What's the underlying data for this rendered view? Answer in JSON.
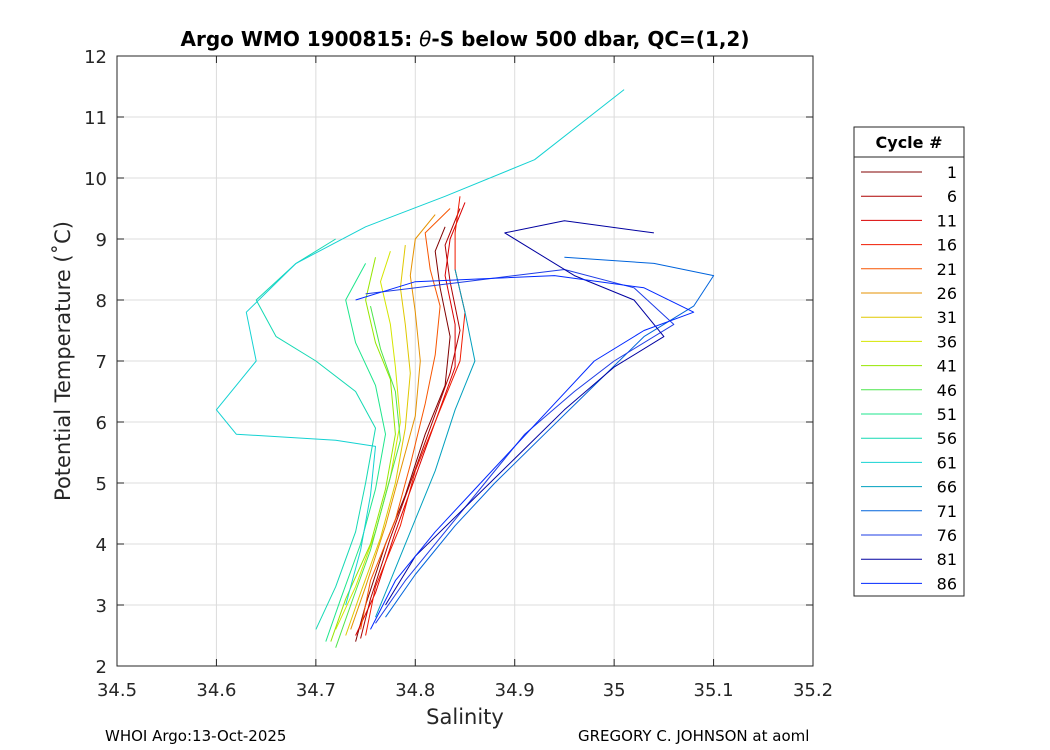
{
  "chart_data": {
    "type": "line",
    "title_prefix": "Argo WMO 1900815: ",
    "title_symbol": "θ",
    "title_suffix": "-S below 500 dbar,  QC=(1,2)",
    "xlabel": "Salinity",
    "ylabel": "Potential Temperature (˚C)",
    "xlim": [
      34.5,
      35.2
    ],
    "ylim": [
      2,
      12
    ],
    "xticks": [
      34.5,
      34.6,
      34.7,
      34.8,
      34.9,
      35,
      35.1,
      35.2
    ],
    "xtick_labels": [
      "34.5",
      "34.6",
      "34.7",
      "34.8",
      "34.9",
      "35",
      "35.1",
      "35.2"
    ],
    "yticks": [
      2,
      3,
      4,
      5,
      6,
      7,
      8,
      9,
      10,
      11,
      12
    ],
    "ytick_labels": [
      "2",
      "3",
      "4",
      "5",
      "6",
      "7",
      "8",
      "9",
      "10",
      "11",
      "12"
    ],
    "grid": true,
    "legend_title": "Cycle #",
    "legend_position": "outside-right",
    "series": [
      {
        "name": "1",
        "color": "#800000",
        "points": [
          [
            34.74,
            2.4
          ],
          [
            34.75,
            3.0
          ],
          [
            34.77,
            4.0
          ],
          [
            34.79,
            4.8
          ],
          [
            34.81,
            5.8
          ],
          [
            34.83,
            6.6
          ],
          [
            34.835,
            7.4
          ],
          [
            34.825,
            8.2
          ],
          [
            34.82,
            8.8
          ],
          [
            34.83,
            9.2
          ]
        ]
      },
      {
        "name": "6",
        "color": "#ad0000",
        "points": [
          [
            34.745,
            2.45
          ],
          [
            34.755,
            3.1
          ],
          [
            34.775,
            4.1
          ],
          [
            34.795,
            5.0
          ],
          [
            34.815,
            5.9
          ],
          [
            34.835,
            6.8
          ],
          [
            34.845,
            7.5
          ],
          [
            34.835,
            8.3
          ],
          [
            34.83,
            8.9
          ],
          [
            34.845,
            9.5
          ]
        ]
      },
      {
        "name": "11",
        "color": "#d90000",
        "points": [
          [
            34.74,
            2.5
          ],
          [
            34.76,
            3.2
          ],
          [
            34.78,
            4.2
          ],
          [
            34.8,
            5.1
          ],
          [
            34.82,
            6.0
          ],
          [
            34.84,
            6.9
          ],
          [
            34.84,
            7.6
          ],
          [
            34.83,
            8.4
          ],
          [
            34.835,
            9.0
          ],
          [
            34.85,
            9.6
          ]
        ]
      },
      {
        "name": "16",
        "color": "#f01a00",
        "points": [
          [
            34.75,
            2.5
          ],
          [
            34.76,
            3.3
          ],
          [
            34.785,
            4.3
          ],
          [
            34.8,
            5.2
          ],
          [
            34.825,
            6.2
          ],
          [
            34.845,
            7.0
          ],
          [
            34.85,
            7.8
          ],
          [
            34.84,
            8.5
          ],
          [
            34.84,
            9.1
          ],
          [
            34.845,
            9.7
          ]
        ]
      },
      {
        "name": "21",
        "color": "#f75500",
        "points": [
          [
            34.745,
            2.6
          ],
          [
            34.755,
            3.4
          ],
          [
            34.78,
            4.4
          ],
          [
            34.795,
            5.3
          ],
          [
            34.81,
            6.3
          ],
          [
            34.82,
            7.1
          ],
          [
            34.825,
            7.9
          ],
          [
            34.815,
            8.5
          ],
          [
            34.81,
            9.1
          ],
          [
            34.835,
            9.5
          ]
        ]
      },
      {
        "name": "26",
        "color": "#e69200",
        "points": [
          [
            34.735,
            2.6
          ],
          [
            34.75,
            3.3
          ],
          [
            34.77,
            4.3
          ],
          [
            34.785,
            5.2
          ],
          [
            34.8,
            6.1
          ],
          [
            34.805,
            7.0
          ],
          [
            34.8,
            7.8
          ],
          [
            34.795,
            8.4
          ],
          [
            34.8,
            9.0
          ],
          [
            34.82,
            9.4
          ]
        ]
      },
      {
        "name": "31",
        "color": "#e0c800",
        "points": [
          [
            34.73,
            2.5
          ],
          [
            34.745,
            3.2
          ],
          [
            34.765,
            4.1
          ],
          [
            34.78,
            5.0
          ],
          [
            34.79,
            5.9
          ],
          [
            34.795,
            6.8
          ],
          [
            34.79,
            7.6
          ],
          [
            34.785,
            8.2
          ],
          [
            34.79,
            8.9
          ]
        ]
      },
      {
        "name": "36",
        "color": "#d4e600",
        "points": [
          [
            34.72,
            2.6
          ],
          [
            34.74,
            3.3
          ],
          [
            34.76,
            4.2
          ],
          [
            34.775,
            5.1
          ],
          [
            34.785,
            6.0
          ],
          [
            34.78,
            6.9
          ],
          [
            34.775,
            7.6
          ],
          [
            34.765,
            8.3
          ],
          [
            34.775,
            8.8
          ]
        ]
      },
      {
        "name": "41",
        "color": "#96e600",
        "points": [
          [
            34.715,
            2.4
          ],
          [
            34.73,
            3.1
          ],
          [
            34.755,
            4.0
          ],
          [
            34.77,
            4.9
          ],
          [
            34.78,
            5.8
          ],
          [
            34.775,
            6.7
          ],
          [
            34.76,
            7.3
          ],
          [
            34.75,
            8.0
          ],
          [
            34.76,
            8.7
          ]
        ]
      },
      {
        "name": "46",
        "color": "#4ce64c",
        "points": [
          [
            34.72,
            2.3
          ],
          [
            34.735,
            3.0
          ],
          [
            34.755,
            3.9
          ],
          [
            34.77,
            4.8
          ],
          [
            34.785,
            5.7
          ],
          [
            34.78,
            6.5
          ],
          [
            34.765,
            7.2
          ],
          [
            34.755,
            7.9
          ]
        ]
      },
      {
        "name": "51",
        "color": "#1ee68c",
        "points": [
          [
            34.71,
            2.4
          ],
          [
            34.725,
            3.1
          ],
          [
            34.745,
            4.0
          ],
          [
            34.76,
            4.9
          ],
          [
            34.77,
            5.8
          ],
          [
            34.76,
            6.6
          ],
          [
            34.74,
            7.3
          ],
          [
            34.73,
            8.0
          ],
          [
            34.75,
            8.6
          ]
        ]
      },
      {
        "name": "56",
        "color": "#14d9b4",
        "points": [
          [
            34.7,
            2.6
          ],
          [
            34.72,
            3.3
          ],
          [
            34.74,
            4.2
          ],
          [
            34.75,
            5.0
          ],
          [
            34.76,
            5.9
          ],
          [
            34.74,
            6.5
          ],
          [
            34.7,
            7.0
          ],
          [
            34.66,
            7.4
          ],
          [
            34.64,
            8.0
          ],
          [
            34.68,
            8.6
          ],
          [
            34.72,
            9.0
          ]
        ]
      },
      {
        "name": "61",
        "color": "#14d2d2",
        "points": [
          [
            34.73,
            3.0
          ],
          [
            34.745,
            3.9
          ],
          [
            34.755,
            4.8
          ],
          [
            34.76,
            5.6
          ],
          [
            34.72,
            5.7
          ],
          [
            34.62,
            5.8
          ],
          [
            34.6,
            6.2
          ],
          [
            34.64,
            7.0
          ],
          [
            34.63,
            7.8
          ],
          [
            34.68,
            8.6
          ],
          [
            34.75,
            9.2
          ],
          [
            34.83,
            9.7
          ],
          [
            34.92,
            10.3
          ],
          [
            35.01,
            11.45
          ]
        ]
      },
      {
        "name": "66",
        "color": "#00a0be",
        "points": [
          [
            34.76,
            2.8
          ],
          [
            34.78,
            3.6
          ],
          [
            34.8,
            4.4
          ],
          [
            34.82,
            5.2
          ],
          [
            34.84,
            6.2
          ],
          [
            34.86,
            7.0
          ],
          [
            34.85,
            7.8
          ],
          [
            34.84,
            8.5
          ]
        ]
      },
      {
        "name": "71",
        "color": "#0064dc",
        "points": [
          [
            34.77,
            2.8
          ],
          [
            34.8,
            3.5
          ],
          [
            34.84,
            4.3
          ],
          [
            34.88,
            5.0
          ],
          [
            34.93,
            5.8
          ],
          [
            34.98,
            6.6
          ],
          [
            35.03,
            7.4
          ],
          [
            35.08,
            7.9
          ],
          [
            35.1,
            8.4
          ],
          [
            35.04,
            8.6
          ],
          [
            34.95,
            8.7
          ]
        ]
      },
      {
        "name": "76",
        "color": "#1e3ce6",
        "points": [
          [
            34.76,
            2.7
          ],
          [
            34.79,
            3.4
          ],
          [
            34.83,
            4.2
          ],
          [
            34.87,
            5.0
          ],
          [
            34.91,
            5.8
          ],
          [
            34.96,
            6.5
          ],
          [
            35.0,
            7.0
          ],
          [
            35.06,
            7.6
          ],
          [
            35.02,
            8.2
          ],
          [
            34.95,
            8.5
          ],
          [
            34.85,
            8.3
          ],
          [
            34.75,
            8.1
          ]
        ]
      },
      {
        "name": "81",
        "color": "#0000a0",
        "points": [
          [
            34.77,
            3.0
          ],
          [
            34.8,
            3.8
          ],
          [
            34.85,
            4.6
          ],
          [
            34.9,
            5.4
          ],
          [
            34.95,
            6.2
          ],
          [
            35.0,
            6.9
          ],
          [
            35.05,
            7.4
          ],
          [
            35.02,
            8.0
          ],
          [
            34.96,
            8.4
          ],
          [
            34.89,
            9.1
          ],
          [
            34.95,
            9.3
          ],
          [
            35.04,
            9.1
          ]
        ]
      },
      {
        "name": "86",
        "color": "#0028ff",
        "points": [
          [
            34.755,
            2.6
          ],
          [
            34.78,
            3.4
          ],
          [
            34.82,
            4.2
          ],
          [
            34.86,
            4.9
          ],
          [
            34.9,
            5.6
          ],
          [
            34.94,
            6.3
          ],
          [
            34.98,
            7.0
          ],
          [
            35.03,
            7.5
          ],
          [
            35.08,
            7.8
          ],
          [
            35.03,
            8.2
          ],
          [
            34.94,
            8.4
          ],
          [
            34.8,
            8.3
          ],
          [
            34.74,
            8.0
          ]
        ]
      }
    ]
  },
  "footer": {
    "left": "WHOI Argo:13-Oct-2025",
    "right": "GREGORY C. JOHNSON at aoml"
  }
}
